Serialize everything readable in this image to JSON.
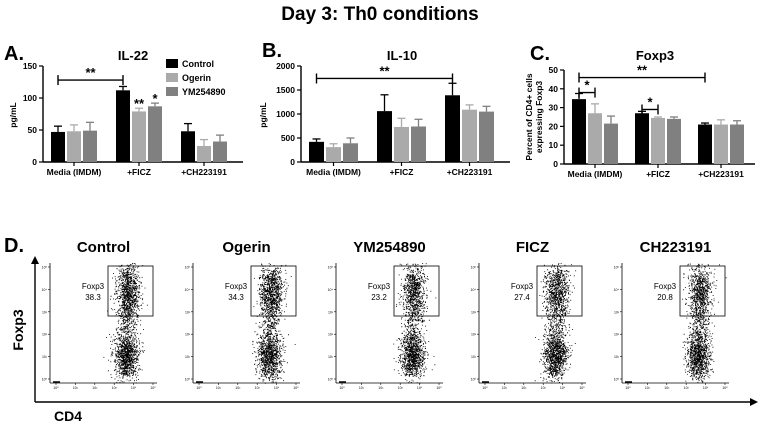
{
  "title": "Day 3: Th0 conditions",
  "colors": {
    "Control": "#000000",
    "Ogerin": "#aaaaaa",
    "YM254890": "#808080"
  },
  "chart_data": [
    {
      "panel": "A.",
      "type": "bar",
      "title": "IL-22",
      "ylabel": "pg/mL",
      "xlabel": "",
      "categories": [
        "Media (IMDM)",
        "+FICZ",
        "+CH223191"
      ],
      "ylim": [
        0,
        150
      ],
      "yticks": [
        0,
        50,
        100,
        150
      ],
      "legend": {
        "placement": "top-right",
        "entries": [
          "Control",
          "Ogerin",
          "YM254890"
        ]
      },
      "series": [
        {
          "name": "Control",
          "values": [
            47,
            112,
            48
          ],
          "errors": [
            9,
            6,
            12
          ]
        },
        {
          "name": "Ogerin",
          "values": [
            48,
            79,
            25
          ],
          "errors": [
            10,
            5,
            10
          ]
        },
        {
          "name": "YM254890",
          "values": [
            49,
            87,
            32
          ],
          "errors": [
            13,
            5,
            10
          ]
        }
      ],
      "annotations": [
        {
          "text": "**",
          "type": "bracket",
          "from": [
            0,
            0
          ],
          "to": [
            1,
            0
          ],
          "y": 128
        },
        {
          "text": "**",
          "type": "star",
          "category": 1,
          "series": 1,
          "y": 84
        },
        {
          "text": "*",
          "type": "star",
          "category": 1,
          "series": 2,
          "y": 92
        }
      ]
    },
    {
      "panel": "B.",
      "type": "bar",
      "title": "IL-10",
      "ylabel": "pg/mL",
      "xlabel": "",
      "categories": [
        "Media (IMDM)",
        "+FICZ",
        "+CH223191"
      ],
      "ylim": [
        0,
        2000
      ],
      "yticks": [
        0,
        500,
        1000,
        1500,
        2000
      ],
      "series": [
        {
          "name": "Control",
          "values": [
            420,
            1060,
            1390
          ],
          "errors": [
            60,
            340,
            250
          ]
        },
        {
          "name": "Ogerin",
          "values": [
            310,
            730,
            1090
          ],
          "errors": [
            70,
            180,
            100
          ]
        },
        {
          "name": "YM254890",
          "values": [
            390,
            740,
            1050
          ],
          "errors": [
            110,
            150,
            110
          ]
        }
      ],
      "annotations": [
        {
          "text": "**",
          "type": "bracket",
          "from": [
            0,
            0
          ],
          "to": [
            2,
            0
          ],
          "y": 1740
        }
      ]
    },
    {
      "panel": "C.",
      "type": "bar",
      "title": "Foxp3",
      "ylabel": "Percent of CD4+ cells expressing Foxp3",
      "ylabel_lines": [
        "Percent of CD4+ cells",
        "expressing Foxp3"
      ],
      "xlabel": "",
      "categories": [
        "Media (IMDM)",
        "+FICZ",
        "+CH223191"
      ],
      "ylim": [
        0,
        50
      ],
      "yticks": [
        0,
        10,
        20,
        30,
        40,
        50
      ],
      "series": [
        {
          "name": "Control",
          "values": [
            34.5,
            27,
            21
          ],
          "errors": [
            3,
            1,
            0.8
          ]
        },
        {
          "name": "Ogerin",
          "values": [
            27,
            24.5,
            21
          ],
          "errors": [
            5,
            0.5,
            2.5
          ]
        },
        {
          "name": "YM254890",
          "values": [
            21.5,
            24,
            21
          ],
          "errors": [
            4,
            1,
            2
          ]
        }
      ],
      "annotations": [
        {
          "text": "**",
          "type": "bracket",
          "from": [
            0,
            0
          ],
          "to": [
            2,
            0
          ],
          "y": 46
        },
        {
          "text": "*",
          "type": "bracket",
          "from": [
            0,
            0
          ],
          "to": [
            0,
            1
          ],
          "y": 38
        },
        {
          "text": "*",
          "type": "bracket",
          "from": [
            1,
            0
          ],
          "to": [
            1,
            1
          ],
          "y": 29
        }
      ]
    }
  ],
  "flow": {
    "panel": "D.",
    "ylabel": "Foxp3",
    "xlabel": "CD4",
    "gate_label": "Foxp3",
    "plots": [
      {
        "title": "Control",
        "percent": "38.3",
        "density": 1.0
      },
      {
        "title": "Ogerin",
        "percent": "34.3",
        "density": 0.95
      },
      {
        "title": "YM254890",
        "percent": "23.2",
        "density": 0.8
      },
      {
        "title": "FICZ",
        "percent": "27.4",
        "density": 0.85
      },
      {
        "title": "CH223191",
        "percent": "20.8",
        "density": 0.78
      }
    ]
  }
}
